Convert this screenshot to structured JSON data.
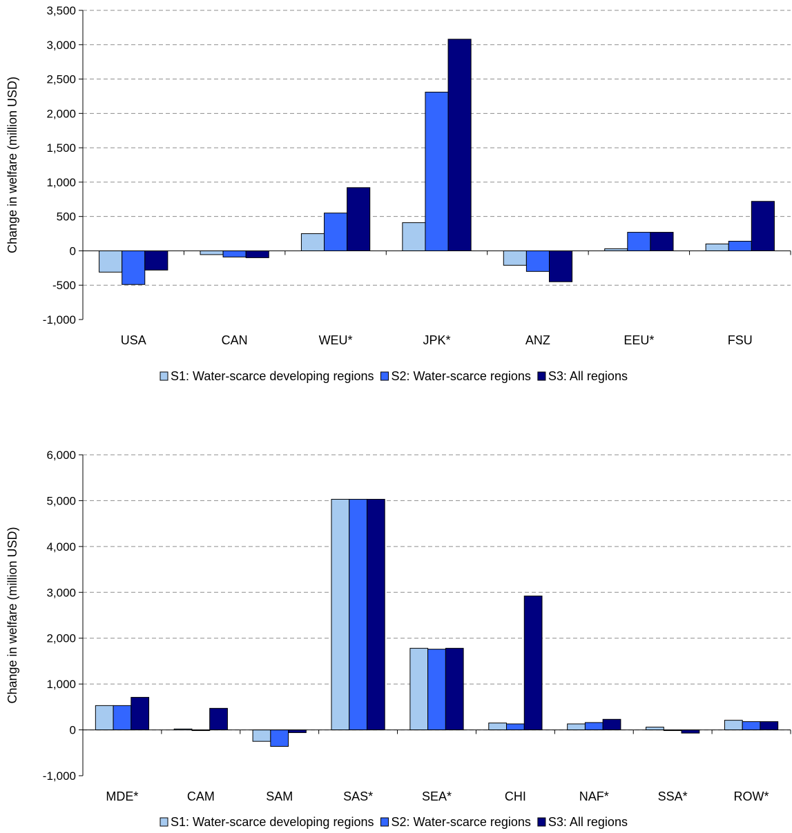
{
  "colors": {
    "s1": "#a6caf0",
    "s2": "#3366ff",
    "s3": "#000080",
    "grid": "#8c8c8c"
  },
  "chart_data": [
    {
      "type": "bar",
      "ylabel": "Change in welfare (million USD)",
      "ylim": [
        -1000,
        3500
      ],
      "ytick_step": 500,
      "ytick_labels": [
        "-1,000",
        "-500",
        "0",
        "500",
        "1,000",
        "1,500",
        "2,000",
        "2,500",
        "3,000",
        "3,500"
      ],
      "grid": "horizontal dashed",
      "legend_position": "bottom",
      "categories": [
        "USA",
        "CAN",
        "WEU*",
        "JPK*",
        "ANZ",
        "EEU*",
        "FSU"
      ],
      "series": [
        {
          "name": "S1: Water-scarce developing regions",
          "values": [
            -310,
            -55,
            250,
            410,
            -210,
            30,
            100
          ]
        },
        {
          "name": "S2: Water-scarce regions",
          "values": [
            -490,
            -90,
            550,
            2310,
            -300,
            270,
            140
          ]
        },
        {
          "name": "S3: All regions",
          "values": [
            -280,
            -100,
            920,
            3080,
            -450,
            270,
            720
          ]
        }
      ]
    },
    {
      "type": "bar",
      "ylabel": "Change in welfare (million USD)",
      "ylim": [
        -1000,
        6000
      ],
      "ytick_step": 1000,
      "ytick_labels": [
        "-1,000",
        "0",
        "1,000",
        "2,000",
        "3,000",
        "4,000",
        "5,000",
        "6,000"
      ],
      "grid": "horizontal dashed",
      "legend_position": "bottom",
      "categories": [
        "MDE*",
        "CAM",
        "SAM",
        "SAS*",
        "SEA*",
        "CHI",
        "NAF*",
        "SSA*",
        "ROW*"
      ],
      "series": [
        {
          "name": "S1: Water-scarce developing regions",
          "values": [
            530,
            20,
            -250,
            5030,
            1780,
            150,
            130,
            60,
            210
          ]
        },
        {
          "name": "S2: Water-scarce regions",
          "values": [
            530,
            0,
            -360,
            5030,
            1760,
            130,
            160,
            0,
            180
          ]
        },
        {
          "name": "S3: All regions",
          "values": [
            710,
            470,
            -60,
            5030,
            1780,
            2920,
            230,
            -70,
            180
          ]
        }
      ]
    }
  ]
}
